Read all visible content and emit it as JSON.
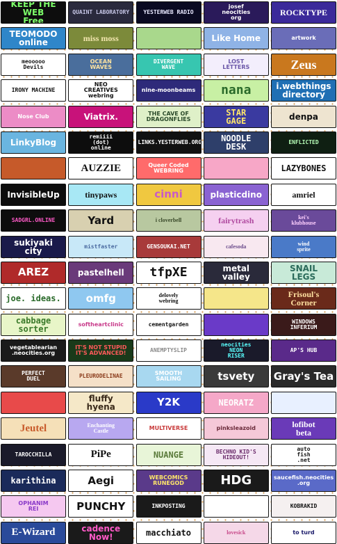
{
  "buttons": [
    {
      "name": "keep-the-web-free",
      "label": "KEEP THE WEB\nFree",
      "bg": "#0d0d0d",
      "fg": "#7dff6a",
      "size": "md",
      "font": "sans"
    },
    {
      "name": "quaint-laboratory",
      "label": "QUAINT LABORATORY",
      "bg": "#2a2a3d",
      "fg": "#c6c6e6",
      "size": "sm",
      "font": "mono"
    },
    {
      "name": "yesterweb-radio",
      "label": "YESTERWEB RADIO",
      "bg": "#0a0a22",
      "fg": "#e8e8ff",
      "size": "sm",
      "font": "mono"
    },
    {
      "name": "josef-neocities",
      "label": "josef\nneocities\norg",
      "bg": "#2a1a5a",
      "fg": "#ffffff",
      "size": "sm",
      "font": "sans"
    },
    {
      "name": "rocktype",
      "label": "ROCKTYPE",
      "bg": "#3b2a9a",
      "fg": "#ffffff",
      "size": "md",
      "font": "serif"
    },
    {
      "name": "teomodo-online",
      "label": "TEOMODO\nonline",
      "bg": "#2f86c9",
      "fg": "#ffffff",
      "size": "md",
      "font": "sans"
    },
    {
      "name": "miss-moss",
      "label": "miss moss",
      "bg": "#7c8a3a",
      "fg": "#f3e7b0",
      "size": "md",
      "font": "serif"
    },
    {
      "name": "frog-button",
      "label": "",
      "bg": "#a9d88c",
      "fg": "#2a5a2a",
      "size": "md",
      "font": "sans"
    },
    {
      "name": "like-home",
      "label": "Like Home",
      "bg": "#8fb3e6",
      "fg": "#ffffff",
      "size": "md",
      "font": "sans"
    },
    {
      "name": "artwork",
      "label": "artwork",
      "bg": "#6a6db8",
      "fg": "#ffffff",
      "size": "sm",
      "font": "sans"
    },
    {
      "name": "meooooo-devils",
      "label": "meooooo\nDevils",
      "bg": "#ffffff",
      "fg": "#111111",
      "size": "sm",
      "font": "mono"
    },
    {
      "name": "ocean-waves",
      "label": "OCEAN\nWAVES",
      "bg": "#4a6e9c",
      "fg": "#ffe3a0",
      "size": "sm",
      "font": "sans"
    },
    {
      "name": "divergent-wave",
      "label": "DIVERGENT\nWAVE",
      "bg": "#37c6b0",
      "fg": "#ffffff",
      "size": "sm",
      "font": "mono"
    },
    {
      "name": "lost-letters",
      "label": "LOST\nLETTERS",
      "bg": "#f3eefc",
      "fg": "#6a56a8",
      "size": "sm",
      "font": "sans"
    },
    {
      "name": "zeus",
      "label": "Zeus",
      "bg": "#c9781e",
      "fg": "#ffffff",
      "size": "xl",
      "font": "serif"
    },
    {
      "name": "irony-machine",
      "label": "IRONY MACHINE",
      "bg": "#ffffff",
      "fg": "#111111",
      "size": "sm",
      "font": "mono"
    },
    {
      "name": "neo-creatives-webring",
      "label": "NEO\nCREATIVES\nwebring",
      "bg": "#ffffff",
      "fg": "#111111",
      "size": "sm",
      "font": "sans"
    },
    {
      "name": "nine-moonbeams",
      "label": "nine-moonbeams",
      "bg": "#2e2a7a",
      "fg": "#ffffff",
      "size": "sm",
      "font": "sans"
    },
    {
      "name": "nana",
      "label": "nana",
      "bg": "#c8f0a4",
      "fg": "#2a6a2a",
      "size": "xl",
      "font": "mono"
    },
    {
      "name": "i-webthings-directory",
      "label": "i.webthings\ndirectory",
      "bg": "#1f6fb4",
      "fg": "#ffffff",
      "size": "md",
      "font": "sans"
    },
    {
      "name": "nose-club",
      "label": "Nose Club",
      "bg": "#ec8cc6",
      "fg": "#ffffff",
      "size": "sm",
      "font": "sans"
    },
    {
      "name": "viatrix",
      "label": "Viatrix.",
      "bg": "#c8127a",
      "fg": "#ffffff",
      "size": "md",
      "font": "sans"
    },
    {
      "name": "cave-of-dragonflies",
      "label": "THE CAVE OF\nDRAGONFLIES",
      "bg": "#dff0c8",
      "fg": "#2a4a2a",
      "size": "sm",
      "font": "sans"
    },
    {
      "name": "star-gage",
      "label": "STAR\nGAGE",
      "bg": "#3a3aa0",
      "fg": "#ffe66a",
      "size": "md",
      "font": "mono"
    },
    {
      "name": "denpa",
      "label": "denpa",
      "bg": "#eee4d0",
      "fg": "#111111",
      "size": "md",
      "font": "sans"
    },
    {
      "name": "linkyblog",
      "label": "LinkyBlog",
      "bg": "#6ab5e0",
      "fg": "#ffffff",
      "size": "md",
      "font": "sans"
    },
    {
      "name": "remiiii-dot-online",
      "label": "remiiii\n(dot)\nonline",
      "bg": "#0d0d0d",
      "fg": "#ffffff",
      "size": "sm",
      "font": "mono"
    },
    {
      "name": "links-yesterweb",
      "label": "LINKS.YESTERWEB.ORG",
      "bg": "#111111",
      "fg": "#ffffff",
      "size": "sm",
      "font": "mono"
    },
    {
      "name": "noodle-desk",
      "label": "NOODLE\nDESK",
      "bg": "#2e3f6a",
      "fg": "#ffffff",
      "size": "md",
      "font": "mono"
    },
    {
      "name": "enflicted",
      "label": "ENFLICTED",
      "bg": "#0f1f12",
      "fg": "#b8ffb8",
      "size": "sm",
      "font": "mono"
    },
    {
      "name": "wavy-mountains",
      "label": "",
      "bg": "#c65a2a",
      "fg": "#ffffff",
      "size": "sm",
      "font": "sans"
    },
    {
      "name": "auzziie",
      "label": "AUZZIE",
      "bg": "#ffffff",
      "fg": "#111111",
      "size": "lg",
      "font": "serif"
    },
    {
      "name": "queer-coded-webring",
      "label": "Queer Coded\nWEBRING",
      "bg": "#ff6b6b",
      "fg": "#ffffff",
      "size": "sm",
      "font": "sans"
    },
    {
      "name": "pink-lights",
      "label": "",
      "bg": "#f7a7c7",
      "fg": "#ffffff",
      "size": "sm",
      "font": "sans"
    },
    {
      "name": "lazybones",
      "label": "LAZYBONES",
      "bg": "#ffffff",
      "fg": "#111111",
      "size": "md",
      "font": "mono"
    },
    {
      "name": "invisibleup",
      "label": "InvisibleUp",
      "bg": "#0d0d0d",
      "fg": "#ffffff",
      "size": "md",
      "font": "sans"
    },
    {
      "name": "tinypaws",
      "label": "tinypaws",
      "bg": "#a8e8f5",
      "fg": "#111111",
      "size": "md",
      "font": "serif"
    },
    {
      "name": "cinni",
      "label": "cinni",
      "bg": "#f0c840",
      "fg": "#c85ac8",
      "size": "lg",
      "font": "sans"
    },
    {
      "name": "plasticdino",
      "label": "plasticdino",
      "bg": "#8a63d2",
      "fg": "#ffffff",
      "size": "md",
      "font": "sans"
    },
    {
      "name": "amriel",
      "label": "amriel",
      "bg": "#ffffff",
      "fg": "#111111",
      "size": "md",
      "font": "serif"
    },
    {
      "name": "sadgrl-online",
      "label": "SADGRL.ONLINE",
      "bg": "#0d0d0d",
      "fg": "#ff5ac8",
      "size": "sm",
      "font": "mono"
    },
    {
      "name": "yard",
      "label": "Yard",
      "bg": "#d8d0b0",
      "fg": "#111111",
      "size": "lg",
      "font": "sans"
    },
    {
      "name": "i-cloverbell",
      "label": "i cloverbell",
      "bg": "#b8c8a0",
      "fg": "#3a4a2a",
      "size": "sm",
      "font": "serif"
    },
    {
      "name": "fairytrash",
      "label": "fairytrash",
      "bg": "#f5d0f0",
      "fg": "#b04aa0",
      "size": "md",
      "font": "serif"
    },
    {
      "name": "kei-klubhouse",
      "label": "kei's\nklubhouse",
      "bg": "#6a4a9a",
      "fg": "#ffd0ff",
      "size": "sm",
      "font": "serif"
    },
    {
      "name": "sukiyaki-city",
      "label": "sukiyaki\ncity",
      "bg": "#1a1a4a",
      "fg": "#ffffff",
      "size": "md",
      "font": "sans"
    },
    {
      "name": "mistfaster",
      "label": "mistfaster",
      "bg": "#c8e8f8",
      "fg": "#4a6aa0",
      "size": "sm",
      "font": "mono"
    },
    {
      "name": "gensoukai-net",
      "label": "GENSOUKAI.NET",
      "bg": "#a83a3a",
      "fg": "#ffffff",
      "size": "sm",
      "font": "mono"
    },
    {
      "name": "cafesoda",
      "label": "cafesoda",
      "bg": "#f8e8f0",
      "fg": "#6a4a8a",
      "size": "sm",
      "font": "serif"
    },
    {
      "name": "wind-sprite",
      "label": "wind\nsprite",
      "bg": "#4a7ac8",
      "fg": "#ffffff",
      "size": "sm",
      "font": "serif"
    },
    {
      "name": "arez",
      "label": "AREZ",
      "bg": "#b02a2a",
      "fg": "#ffffff",
      "size": "lg",
      "font": "sans"
    },
    {
      "name": "pastelhell",
      "label": "pastelhell",
      "bg": "#6a3a7a",
      "fg": "#ffffff",
      "size": "md",
      "font": "sans"
    },
    {
      "name": "tfpxe",
      "label": "tfpXE",
      "bg": "#ffffff",
      "fg": "#111111",
      "size": "xl",
      "font": "mono"
    },
    {
      "name": "metal-valley",
      "label": "metal\nvalley",
      "bg": "#2a2a3a",
      "fg": "#ffffff",
      "size": "md",
      "font": "sans"
    },
    {
      "name": "snail-legs",
      "label": "SNAIL\nLEGS",
      "bg": "#c8ead8",
      "fg": "#2a6a5a",
      "size": "md",
      "font": "sans"
    },
    {
      "name": "joe-ideas",
      "label": "joe. ideas.",
      "bg": "#ffffff",
      "fg": "#2a6a2a",
      "size": "md",
      "font": "mono"
    },
    {
      "name": "omfg",
      "label": "omfg",
      "bg": "#8fc8f0",
      "fg": "#ffffff",
      "size": "lg",
      "font": "sans"
    },
    {
      "name": "delovely-webring",
      "label": "delovely\nwebring",
      "bg": "#ffffff",
      "fg": "#111111",
      "size": "sm",
      "font": "serif"
    },
    {
      "name": "yellow-wave",
      "label": "",
      "bg": "#f5e68a",
      "fg": "#ffffff",
      "size": "sm",
      "font": "sans"
    },
    {
      "name": "frisouls-corner",
      "label": "Frisoul's\nCorner",
      "bg": "#6a2a1a",
      "fg": "#ffe0a0",
      "size": "md",
      "font": "serif"
    },
    {
      "name": "cabbage-sorter",
      "label": "cabbage\nsorter",
      "bg": "#e8f5c8",
      "fg": "#3a7a2a",
      "size": "md",
      "font": "mono"
    },
    {
      "name": "softheartclinic",
      "label": "softheartclinic",
      "bg": "#ffffff",
      "fg": "#c83a8a",
      "size": "sm",
      "font": "sans"
    },
    {
      "name": "cementgarden",
      "label": "cementgarden",
      "bg": "#ffffff",
      "fg": "#111111",
      "size": "sm",
      "font": "mono"
    },
    {
      "name": "purple-grid",
      "label": "",
      "bg": "#6a3ac8",
      "fg": "#ffffff",
      "size": "sm",
      "font": "sans"
    },
    {
      "name": "windows-inferium",
      "label": "WINDOWS\nINFERIUM",
      "bg": "#3a1a1a",
      "fg": "#ffffff",
      "size": "sm",
      "font": "mono"
    },
    {
      "name": "vegetablearian",
      "label": "vegetablearian\n.neocities.org",
      "bg": "#1a1a1a",
      "fg": "#ffffff",
      "size": "sm",
      "font": "sans"
    },
    {
      "name": "its-not-stupid",
      "label": "IT'S NOT STUPID\nIT'S ADVANCED!",
      "bg": "#1a3a1a",
      "fg": "#ff5a5a",
      "size": "sm",
      "font": "sans"
    },
    {
      "name": "anemptyslip",
      "label": "ANEMPTYSLIP",
      "bg": "#ffffff",
      "fg": "#8a8a8a",
      "size": "sm",
      "font": "mono"
    },
    {
      "name": "neon-riser",
      "label": "neocities\nNEON\nRISER",
      "bg": "#1a1a2a",
      "fg": "#5affff",
      "size": "sm",
      "font": "mono"
    },
    {
      "name": "aps-hub",
      "label": "AP'S HUB",
      "bg": "#5a2a8a",
      "fg": "#ffffff",
      "size": "sm",
      "font": "mono"
    },
    {
      "name": "perfect-duel",
      "label": "PERFECT\nDUEL",
      "bg": "#5a3a2a",
      "fg": "#ffffff",
      "size": "sm",
      "font": "mono"
    },
    {
      "name": "pleurodelinae",
      "label": "PLEURODELINAE",
      "bg": "#f5e0c8",
      "fg": "#8a3a1a",
      "size": "sm",
      "font": "mono"
    },
    {
      "name": "smooth-sailing",
      "label": "SMOOTH\nSAILING",
      "bg": "#a8d8f0",
      "fg": "#ffffff",
      "size": "sm",
      "font": "sans"
    },
    {
      "name": "tsvety",
      "label": "tsvety",
      "bg": "#3a3a3a",
      "fg": "#ffffff",
      "size": "lg",
      "font": "sans"
    },
    {
      "name": "grays-tea",
      "label": "Gray's Tea",
      "bg": "#2a2a2a",
      "fg": "#ffffff",
      "size": "lg",
      "font": "sans"
    },
    {
      "name": "rainbow-stripes",
      "label": "",
      "bg": "#e84a4a",
      "fg": "#ffffff",
      "size": "sm",
      "font": "sans"
    },
    {
      "name": "fluffy-hyena",
      "label": "fluffy\nhyena",
      "bg": "#f5e8c8",
      "fg": "#3a2a1a",
      "size": "md",
      "font": "sans"
    },
    {
      "name": "y2k",
      "label": "Y2K",
      "bg": "#2a3ac8",
      "fg": "#ffffff",
      "size": "lg",
      "font": "sans"
    },
    {
      "name": "neorat",
      "label": "NEORATZ",
      "bg": "#f5a8c8",
      "fg": "#ffffff",
      "size": "md",
      "font": "mono"
    },
    {
      "name": "blue-sketch",
      "label": "",
      "bg": "#e8f0ff",
      "fg": "#111111",
      "size": "sm",
      "font": "sans"
    },
    {
      "name": "jeutel",
      "label": "Jeutel",
      "bg": "#f5e0b8",
      "fg": "#c85a2a",
      "size": "lg",
      "font": "serif"
    },
    {
      "name": "enchanting-castle",
      "label": "Enchanting\nCastle",
      "bg": "#b8a8f0",
      "fg": "#ffffff",
      "size": "sm",
      "font": "serif"
    },
    {
      "name": "multiverse",
      "label": "MULTIVERSE",
      "bg": "#ffffff",
      "fg": "#c83a3a",
      "size": "sm",
      "font": "sans"
    },
    {
      "name": "pinksleazoid",
      "label": "pinksleazoid",
      "bg": "#f5c8d8",
      "fg": "#6a2a3a",
      "size": "sm",
      "font": "sans"
    },
    {
      "name": "lofibot-beta",
      "label": "lofibot\nbeta",
      "bg": "#6a3ab8",
      "fg": "#ffffff",
      "size": "md",
      "font": "serif"
    },
    {
      "name": "tarocchilla",
      "label": "TAROCCHILLA",
      "bg": "#1a1a2a",
      "fg": "#ffffff",
      "size": "sm",
      "font": "mono"
    },
    {
      "name": "pipe",
      "label": "PiPe",
      "bg": "#ffffff",
      "fg": "#111111",
      "size": "lg",
      "font": "serif"
    },
    {
      "name": "nuange",
      "label": "NUANGE",
      "bg": "#e8f5d8",
      "fg": "#5a7a3a",
      "size": "md",
      "font": "mono"
    },
    {
      "name": "bechno-kids-hideout",
      "label": "BECHNO KID'S\nHIDEOUT!",
      "bg": "#f5e8f5",
      "fg": "#6a2a6a",
      "size": "sm",
      "font": "mono"
    },
    {
      "name": "autofish-net",
      "label": "auto\nfish\n.net",
      "bg": "#ffffff",
      "fg": "#111111",
      "size": "sm",
      "font": "mono"
    },
    {
      "name": "karithina",
      "label": "karithina",
      "bg": "#1a2a5a",
      "fg": "#ffffff",
      "size": "md",
      "font": "mono"
    },
    {
      "name": "aegi",
      "label": "Aegi",
      "bg": "#ffffff",
      "fg": "#111111",
      "size": "lg",
      "font": "sans"
    },
    {
      "name": "webcomics-runegod",
      "label": "WEBCOMICS\nRUNEGOD",
      "bg": "#5a3a8a",
      "fg": "#ffe66a",
      "size": "sm",
      "font": "sans"
    },
    {
      "name": "hdg",
      "label": "HDG",
      "bg": "#1a1a1a",
      "fg": "#ffffff",
      "size": "xl",
      "font": "sans"
    },
    {
      "name": "saucefish-neocities",
      "label": "saucefish.neocities\n.org",
      "bg": "#5a6ac8",
      "fg": "#ffffff",
      "size": "sm",
      "font": "sans"
    },
    {
      "name": "ophanim-rei",
      "label": "OPHANIM\nREI",
      "bg": "#f5c8f0",
      "fg": "#8a3ac8",
      "size": "sm",
      "font": "sans"
    },
    {
      "name": "punchy",
      "label": "PUNCHY",
      "bg": "#ffffff",
      "fg": "#111111",
      "size": "lg",
      "font": "sans"
    },
    {
      "name": "inkposting",
      "label": "INKPOSTING",
      "bg": "#1a1a1a",
      "fg": "#ffffff",
      "size": "sm",
      "font": "mono"
    },
    {
      "name": "bear-pals",
      "label": "",
      "bg": "#ffffff",
      "fg": "#111111",
      "size": "sm",
      "font": "sans"
    },
    {
      "name": "kobrakid",
      "label": "KOBRAKID",
      "bg": "#f5f0f0",
      "fg": "#111111",
      "size": "sm",
      "font": "mono"
    },
    {
      "name": "e-wizard",
      "label": "E-Wizard",
      "bg": "#2a4a9a",
      "fg": "#ffffff",
      "size": "lg",
      "font": "serif"
    },
    {
      "name": "cadence-now",
      "label": "cadence\nNow!",
      "bg": "#1a1a1a",
      "fg": "#ff5ac8",
      "size": "md",
      "font": "sans"
    },
    {
      "name": "macchiato",
      "label": "macchiato",
      "bg": "#ffffff",
      "fg": "#111111",
      "size": "md",
      "font": "mono"
    },
    {
      "name": "lovesick-girl",
      "label": "lovesick",
      "bg": "#f5d8e8",
      "fg": "#c84a8a",
      "size": "sm",
      "font": "serif"
    },
    {
      "name": "to-turd",
      "label": "to turd",
      "bg": "#ffffff",
      "fg": "#1a1a6a",
      "size": "sm",
      "font": "sans"
    }
  ]
}
